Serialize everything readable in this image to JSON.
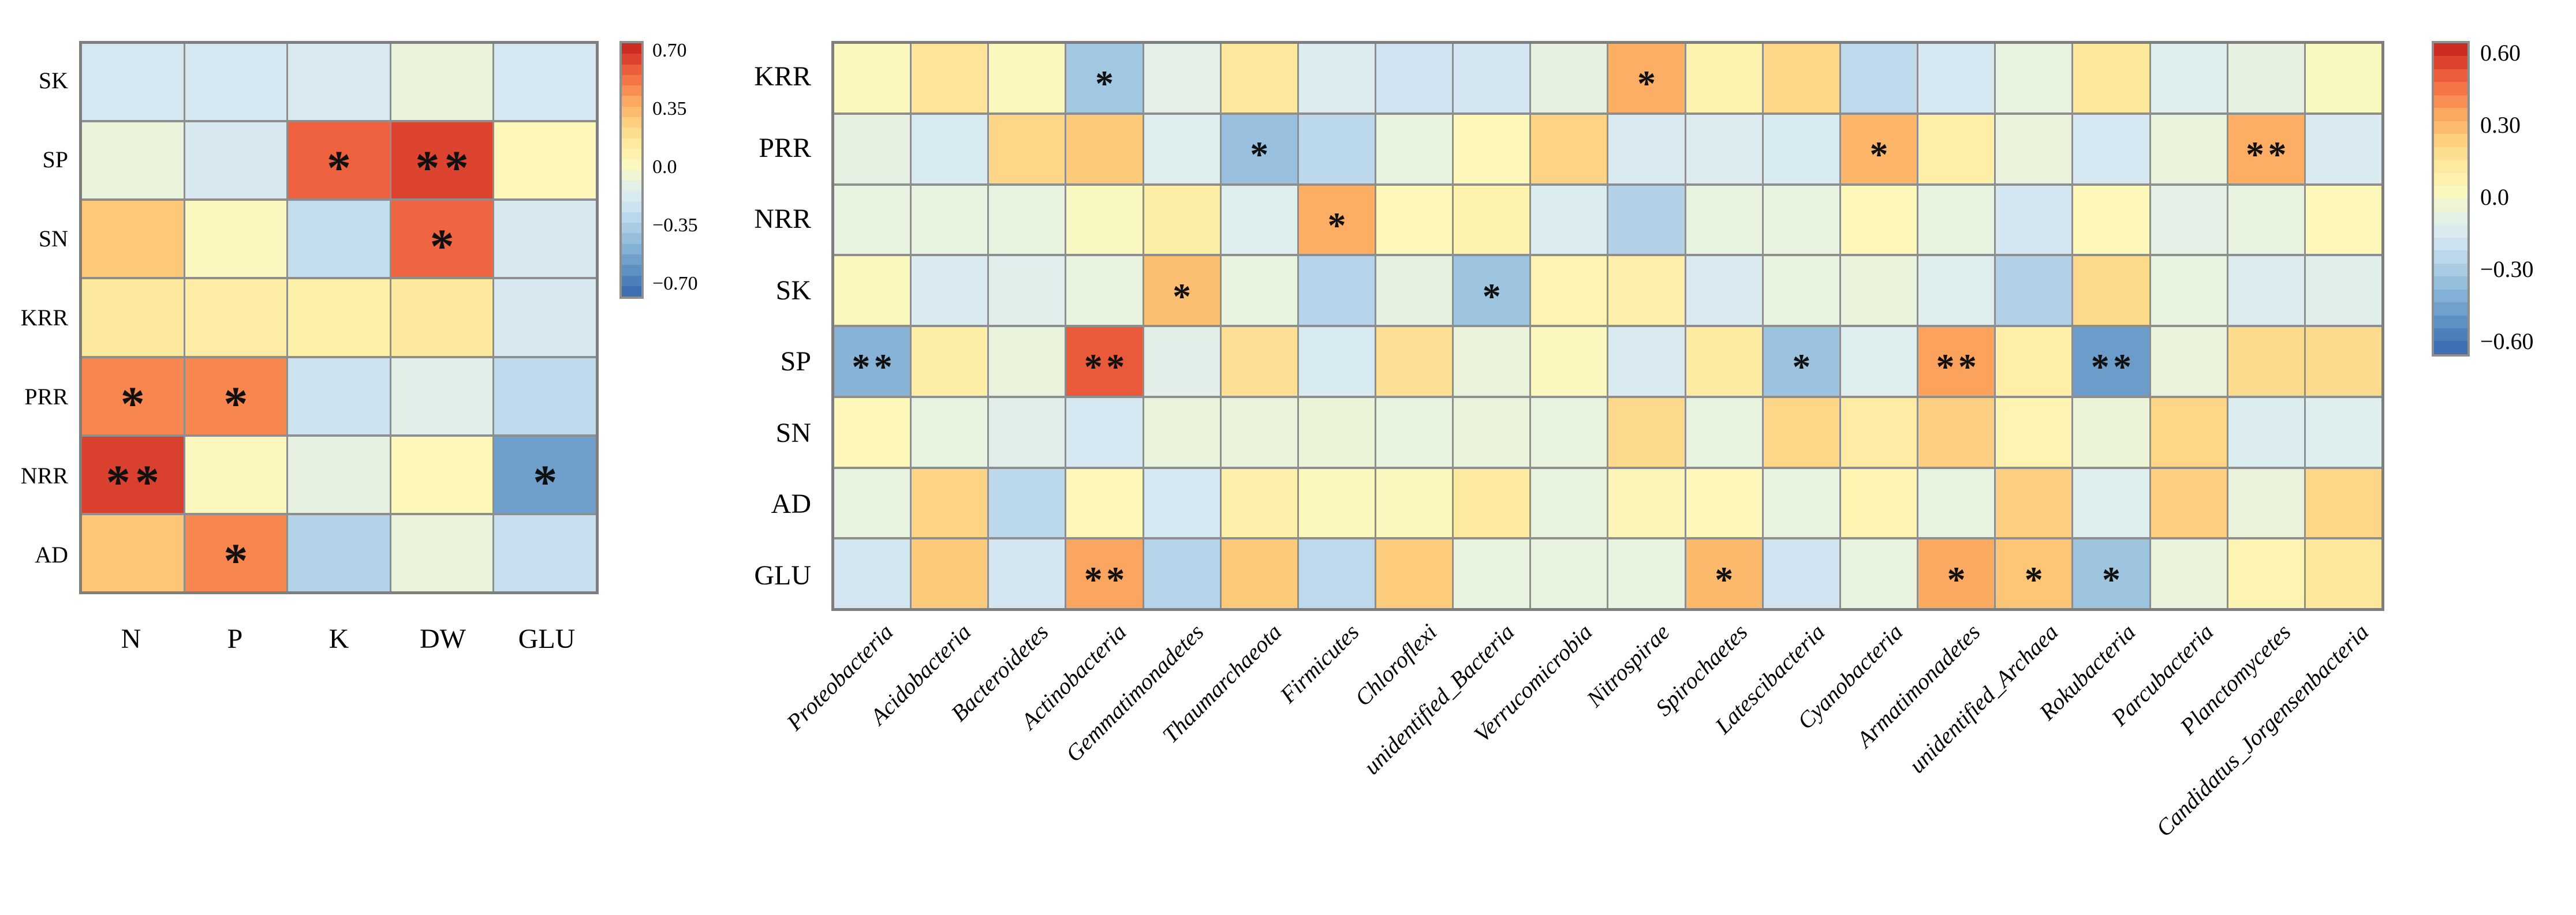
{
  "figure": {
    "background_color": "#ffffff",
    "gridline_color": "#8e8e8e",
    "border_color": "#7e7e7e",
    "significance_marker_color": "#101010"
  },
  "palette": {
    "description": "red-yellow-blue diverging colormap stops, t=0 is most negative, t=1 is most positive",
    "stops": [
      [
        0.0,
        "#3f6fb2"
      ],
      [
        0.06,
        "#5286bf"
      ],
      [
        0.12,
        "#6c9cca"
      ],
      [
        0.18,
        "#86b2d6"
      ],
      [
        0.24,
        "#a0c6e1"
      ],
      [
        0.3,
        "#b9d6ea"
      ],
      [
        0.36,
        "#d2e5f1"
      ],
      [
        0.41,
        "#ddedf0"
      ],
      [
        0.46,
        "#e9f3dc"
      ],
      [
        0.5,
        "#f7f8c6"
      ],
      [
        0.54,
        "#fdf7ba"
      ],
      [
        0.57,
        "#fdf0aa"
      ],
      [
        0.62,
        "#fde89c"
      ],
      [
        0.67,
        "#fdd98b"
      ],
      [
        0.7,
        "#fdcd7d"
      ],
      [
        0.76,
        "#fcb367"
      ],
      [
        0.8,
        "#fba05c"
      ],
      [
        0.84,
        "#f8854f"
      ],
      [
        0.9,
        "#ef6441"
      ],
      [
        0.95,
        "#e04832"
      ],
      [
        1.0,
        "#cb2d23"
      ]
    ]
  },
  "chart_data": [
    {
      "type": "heatmap",
      "panel": "left",
      "rows": [
        "SK",
        "SP",
        "SN",
        "KRR",
        "PRR",
        "NRR",
        "AD"
      ],
      "columns": [
        "N",
        "P",
        "K",
        "DW",
        "GLU"
      ],
      "values": [
        [
          -0.19,
          -0.19,
          -0.17,
          -0.06,
          -0.19
        ],
        [
          -0.06,
          -0.18,
          0.61,
          0.69,
          0.06
        ],
        [
          0.32,
          0.04,
          -0.26,
          0.6,
          -0.18
        ],
        [
          0.17,
          0.14,
          0.11,
          0.17,
          -0.18
        ],
        [
          0.51,
          0.51,
          -0.23,
          -0.11,
          -0.28
        ],
        [
          0.7,
          0.05,
          -0.08,
          0.06,
          -0.56
        ],
        [
          0.33,
          0.51,
          -0.32,
          -0.06,
          -0.25
        ]
      ],
      "significance": [
        [
          "",
          "",
          "",
          "",
          ""
        ],
        [
          "",
          "",
          "*",
          "**",
          ""
        ],
        [
          "",
          "",
          "",
          "*",
          ""
        ],
        [
          "",
          "",
          "",
          "",
          ""
        ],
        [
          "*",
          "*",
          "",
          "",
          ""
        ],
        [
          "**",
          "",
          "",
          "",
          "*"
        ],
        [
          "",
          "*",
          "",
          "",
          ""
        ]
      ],
      "value_limit": 0.753,
      "grid": "on",
      "legend_position": "right",
      "colorbar": {
        "vmax": 0.7,
        "vmin": -0.7,
        "ticks": [
          "0.70",
          "0.35",
          "0.0",
          "−0.35",
          "−0.70"
        ]
      }
    },
    {
      "type": "heatmap",
      "panel": "right",
      "rows": [
        "KRR",
        "PRR",
        "NRR",
        "SK",
        "SP",
        "SN",
        "AD",
        "GLU"
      ],
      "columns": [
        "Proteobacteria",
        "Acidobacteria",
        "Bacteroidetes",
        "Actinobacteria",
        "Gemmatimonadetes",
        "Thaumarchaeota",
        "Firmicutes",
        "Chloroflexi",
        "unidentified_Bacteria",
        "Verrucomicrobia",
        "Nitrospirae",
        "Spirochaetes",
        "Latescibacteria",
        "Cyanobacteria",
        "Armatimonadetes",
        "unidentified_Archaea",
        "Rokubacteria",
        "Parcubacteria",
        "Planctomycetes",
        "Candidatus_Jorgensenbacteria"
      ],
      "values": [
        [
          0.04,
          0.17,
          0.04,
          -0.33,
          -0.08,
          0.15,
          -0.13,
          -0.19,
          -0.18,
          -0.07,
          0.35,
          0.08,
          0.23,
          -0.24,
          -0.16,
          -0.06,
          0.16,
          -0.11,
          -0.07,
          0.02
        ],
        [
          -0.07,
          -0.15,
          0.23,
          0.27,
          -0.11,
          -0.36,
          -0.25,
          -0.06,
          0.05,
          0.24,
          -0.14,
          -0.13,
          -0.15,
          0.33,
          0.1,
          -0.05,
          -0.16,
          -0.05,
          0.35,
          -0.14
        ],
        [
          -0.06,
          -0.06,
          -0.06,
          0.02,
          0.11,
          -0.11,
          0.35,
          0.05,
          0.08,
          -0.12,
          -0.28,
          -0.06,
          -0.06,
          0.05,
          -0.06,
          -0.17,
          0.05,
          -0.08,
          -0.06,
          0.05
        ],
        [
          0.03,
          -0.14,
          -0.1,
          -0.06,
          0.3,
          -0.06,
          -0.27,
          -0.07,
          -0.34,
          0.07,
          0.09,
          -0.14,
          -0.06,
          -0.05,
          -0.11,
          -0.28,
          0.22,
          -0.06,
          -0.13,
          -0.1
        ],
        [
          -0.41,
          0.11,
          -0.05,
          0.54,
          -0.09,
          0.19,
          -0.15,
          0.19,
          -0.05,
          0.03,
          -0.14,
          0.13,
          -0.35,
          -0.11,
          0.38,
          0.1,
          -0.49,
          -0.05,
          0.21,
          0.21
        ],
        [
          0.05,
          -0.06,
          -0.1,
          -0.16,
          -0.05,
          -0.05,
          -0.04,
          -0.06,
          -0.05,
          -0.06,
          0.22,
          -0.06,
          0.23,
          0.12,
          0.25,
          0.07,
          -0.04,
          0.23,
          -0.12,
          -0.11
        ],
        [
          -0.06,
          0.24,
          -0.25,
          0.05,
          -0.16,
          0.09,
          0.03,
          0.03,
          0.14,
          -0.06,
          0.06,
          0.05,
          -0.06,
          0.07,
          -0.06,
          0.25,
          -0.11,
          0.25,
          -0.05,
          0.23
        ],
        [
          -0.18,
          0.27,
          -0.17,
          0.37,
          -0.27,
          0.27,
          -0.24,
          0.26,
          -0.06,
          -0.06,
          -0.06,
          0.32,
          -0.19,
          -0.06,
          0.36,
          0.28,
          -0.34,
          -0.05,
          0.07,
          0.16
        ]
      ],
      "significance": [
        [
          "",
          "",
          "",
          "*",
          "",
          "",
          "",
          "",
          "",
          "",
          "*",
          "",
          "",
          "",
          "",
          "",
          "",
          "",
          "",
          ""
        ],
        [
          "",
          "",
          "",
          "",
          "",
          "*",
          "",
          "",
          "",
          "",
          "",
          "",
          "",
          "*",
          "",
          "",
          "",
          "",
          "**",
          ""
        ],
        [
          "",
          "",
          "",
          "",
          "",
          "",
          "*",
          "",
          "",
          "",
          "",
          "",
          "",
          "",
          "",
          "",
          "",
          "",
          "",
          ""
        ],
        [
          "",
          "",
          "",
          "",
          "*",
          "",
          "",
          "",
          "*",
          "",
          "",
          "",
          "",
          "",
          "",
          "",
          "",
          "",
          "",
          ""
        ],
        [
          "**",
          "",
          "",
          "**",
          "",
          "",
          "",
          "",
          "",
          "",
          "",
          "",
          "*",
          "",
          "**",
          "",
          "**",
          "",
          "",
          ""
        ],
        [
          "",
          "",
          "",
          "",
          "",
          "",
          "",
          "",
          "",
          "",
          "",
          "",
          "",
          "",
          "",
          "",
          "",
          "",
          "",
          ""
        ],
        [
          "",
          "",
          "",
          "",
          "",
          "",
          "",
          "",
          "",
          "",
          "",
          "",
          "",
          "",
          "",
          "",
          "",
          "",
          "",
          ""
        ],
        [
          "",
          "",
          "",
          "**",
          "",
          "",
          "",
          "",
          "",
          "",
          "",
          "*",
          "",
          "",
          "*",
          "*",
          "*",
          "",
          "",
          ""
        ]
      ],
      "value_limit": 0.645,
      "grid": "on",
      "legend_position": "right",
      "colorbar": {
        "vmax": 0.6,
        "vmin": -0.6,
        "ticks": [
          "0.60",
          "0.30",
          "0.0",
          "−0.30",
          "−0.60"
        ]
      }
    }
  ]
}
